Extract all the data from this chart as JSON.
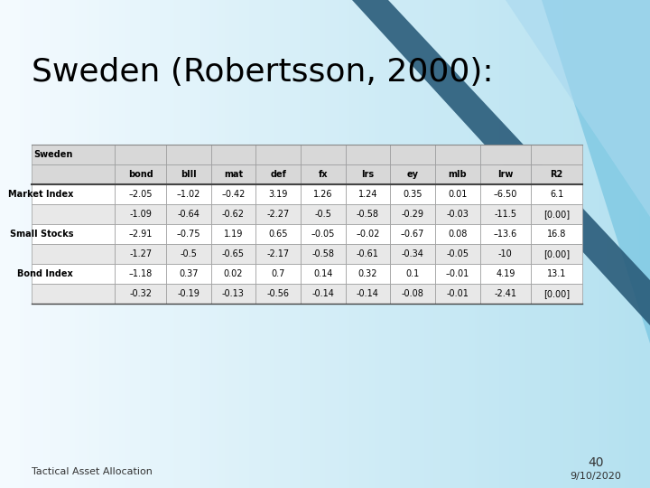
{
  "title": "Sweden (Robertsson, 2000):",
  "title_color": "#000000",
  "title_fontsize": 26,
  "footer_left": "Tactical Asset Allocation",
  "footer_right": "9/10/2020",
  "footer_page": "40",
  "col_headers": [
    "Sweden",
    "bond",
    "blll",
    "mat",
    "def",
    "fx",
    "lrs",
    "ey",
    "mlb",
    "lrw",
    "R2"
  ],
  "table_rows": [
    [
      "Market Index",
      "–2.05",
      "–1.02",
      "–0.42",
      "3.19",
      "1.26",
      "1.24",
      "0.35",
      "0.01",
      "–6.50",
      "6.1"
    ],
    [
      "",
      "-1.09",
      "-0.64",
      "-0.62",
      "-2.27",
      "-0.5",
      "-0.58",
      "-0.29",
      "-0.03",
      "-11.5",
      "[0.00]"
    ],
    [
      "Small Stocks",
      "–2.91",
      "–0.75",
      "1.19",
      "0.65",
      "–0.05",
      "–0.02",
      "–0.67",
      "0.08",
      "–13.6",
      "16.8"
    ],
    [
      "",
      "-1.27",
      "-0.5",
      "-0.65",
      "-2.17",
      "-0.58",
      "-0.61",
      "-0.34",
      "-0.05",
      "-10",
      "[0.00]"
    ],
    [
      "Bond Index",
      "–1.18",
      "0.37",
      "0.02",
      "0.7",
      "0.14",
      "0.32",
      "0.1",
      "–0.01",
      "4.19",
      "13.1"
    ],
    [
      "",
      "-0.32",
      "-0.19",
      "-0.13",
      "-0.56",
      "-0.14",
      "-0.14",
      "-0.08",
      "-0.01",
      "-2.41",
      "[0.00]"
    ]
  ],
  "col_rel_widths": [
    1.3,
    0.8,
    0.7,
    0.7,
    0.7,
    0.7,
    0.7,
    0.7,
    0.7,
    0.8,
    0.8
  ],
  "header_bg": "#d8d8d8",
  "row_bgs": [
    "#ffffff",
    "#e8e8e8",
    "#ffffff",
    "#e8e8e8",
    "#ffffff",
    "#e8e8e8"
  ],
  "table_font_size": 7.0,
  "bold_label_rows": [
    0,
    2,
    4
  ],
  "swoosh_dark": "#2a5c7a",
  "swoosh_light": "#7ec8e3",
  "bg_white": "#f5fbff",
  "bg_blue": "#c8e8f5"
}
